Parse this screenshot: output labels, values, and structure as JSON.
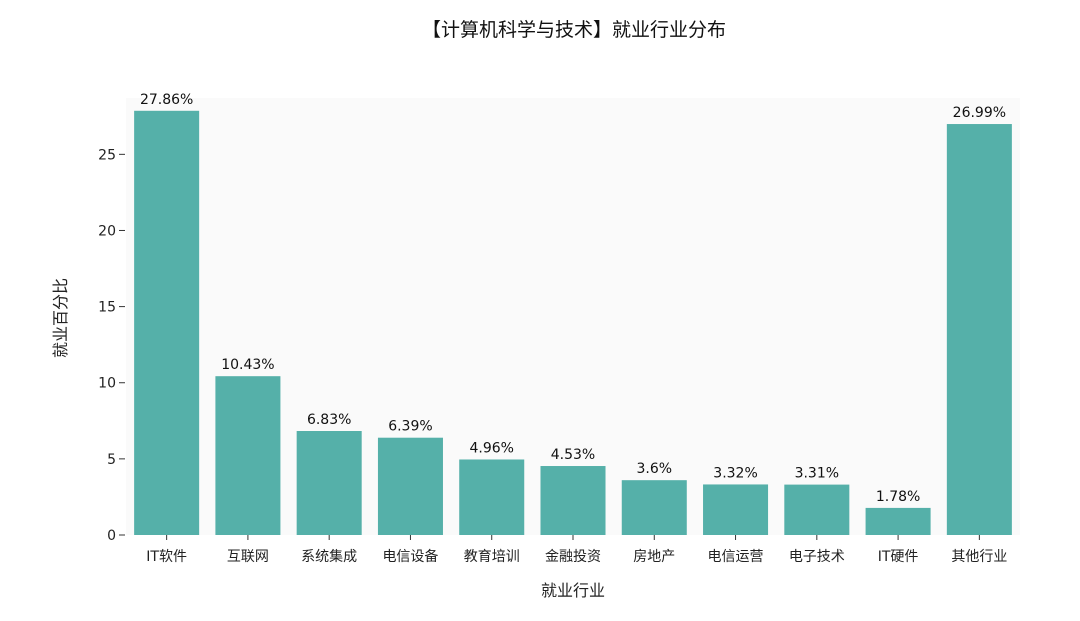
{
  "chart_data": {
    "type": "bar",
    "title": "【计算机科学与技术】就业行业分布",
    "xlabel": "就业行业",
    "ylabel": "就业百分比",
    "ylim": [
      0,
      28.7
    ],
    "yticks": [
      0,
      5,
      10,
      15,
      20,
      25
    ],
    "grid": false,
    "categories": [
      "IT软件",
      "互联网",
      "系统集成",
      "电信设备",
      "教育培训",
      "金融投资",
      "房地产",
      "电信运营",
      "电子技术",
      "IT硬件",
      "其他行业"
    ],
    "values": [
      27.86,
      10.43,
      6.83,
      6.39,
      4.96,
      4.53,
      3.6,
      3.32,
      3.31,
      1.78,
      26.99
    ],
    "value_labels": [
      "27.86%",
      "10.43%",
      "6.83%",
      "6.39%",
      "4.96%",
      "4.53%",
      "3.6%",
      "3.32%",
      "3.31%",
      "1.78%",
      "26.99%"
    ],
    "colors": {
      "bar": "#55b0a9",
      "plot_background": "#fafafa",
      "axis": "#333333",
      "text": "#222222"
    }
  }
}
